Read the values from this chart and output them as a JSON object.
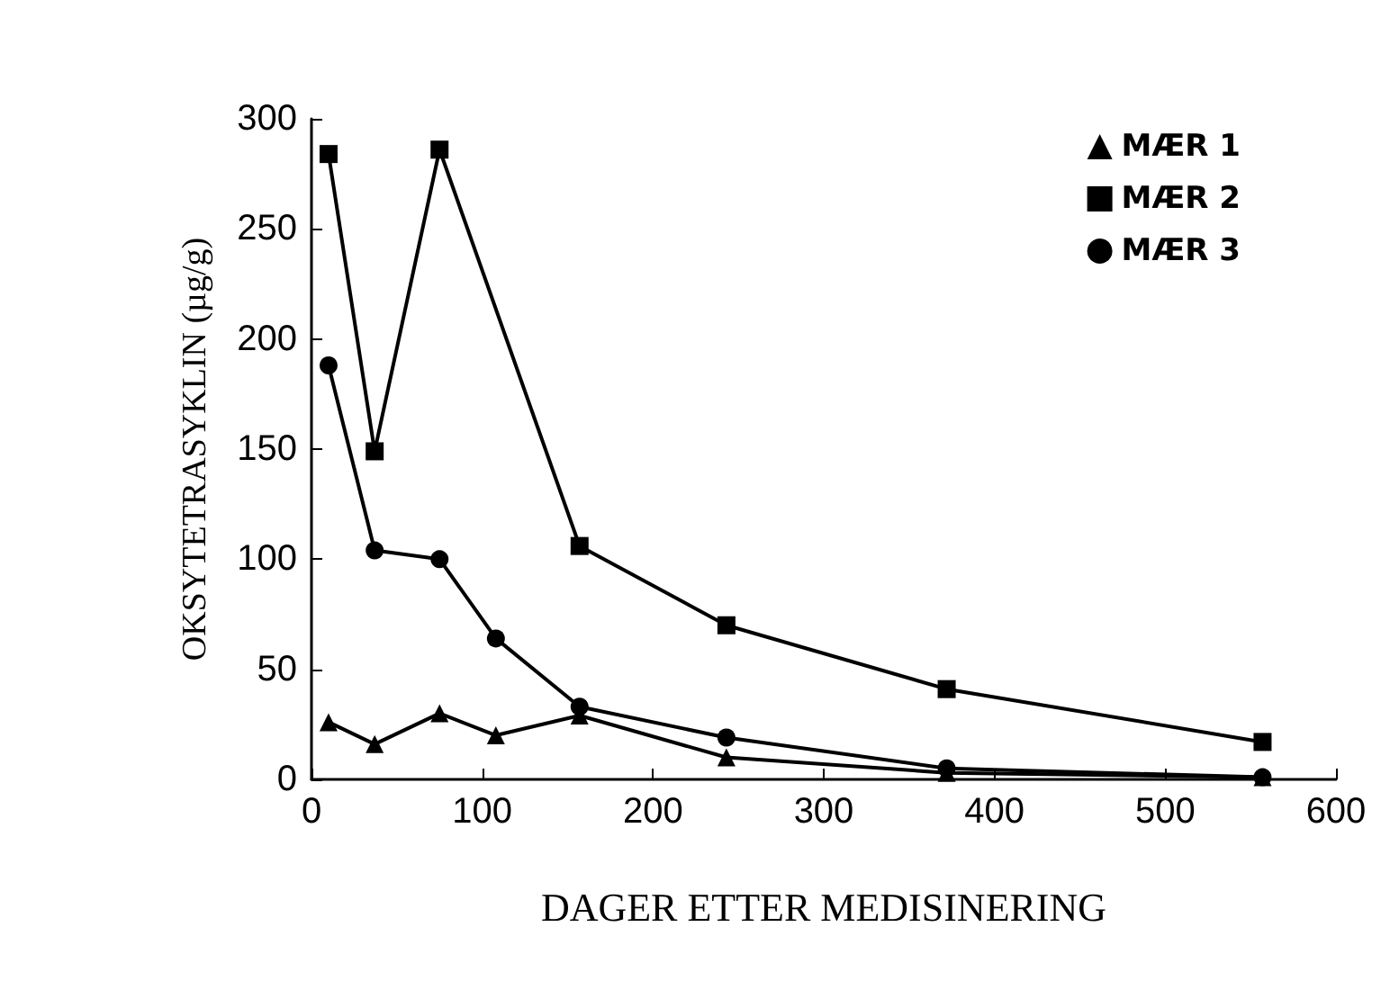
{
  "chart_data": {
    "type": "line",
    "xlabel": "DAGER ETTER MEDISINERING",
    "ylabel": "OKSYTETRASYKLIN (µg/g)",
    "xlim": [
      0,
      600
    ],
    "xticks": [
      0,
      100,
      200,
      300,
      400,
      500,
      600
    ],
    "ylim": [
      0,
      300
    ],
    "yticks": [
      0,
      50,
      100,
      150,
      200,
      250,
      300
    ],
    "grid": false,
    "legend": "top right",
    "line_style": "solid",
    "series": [
      {
        "name": "MÆR 1",
        "color": "#000000",
        "marker": "triangle",
        "x": [
          10,
          37,
          75,
          108,
          157,
          243,
          372,
          557
        ],
        "values": [
          26,
          16,
          30,
          20,
          29,
          10,
          3,
          1
        ]
      },
      {
        "name": "MÆR 2",
        "color": "#000000",
        "marker": "square",
        "x": [
          10,
          37,
          75,
          157,
          243,
          372,
          557
        ],
        "values": [
          284,
          149,
          286,
          106,
          70,
          41,
          17
        ]
      },
      {
        "name": "MÆR 3",
        "color": "#000000",
        "marker": "circle",
        "x": [
          10,
          37,
          75,
          108,
          157,
          243,
          372,
          557
        ],
        "values": [
          188,
          104,
          100,
          64,
          33,
          19,
          5,
          1
        ]
      }
    ]
  }
}
